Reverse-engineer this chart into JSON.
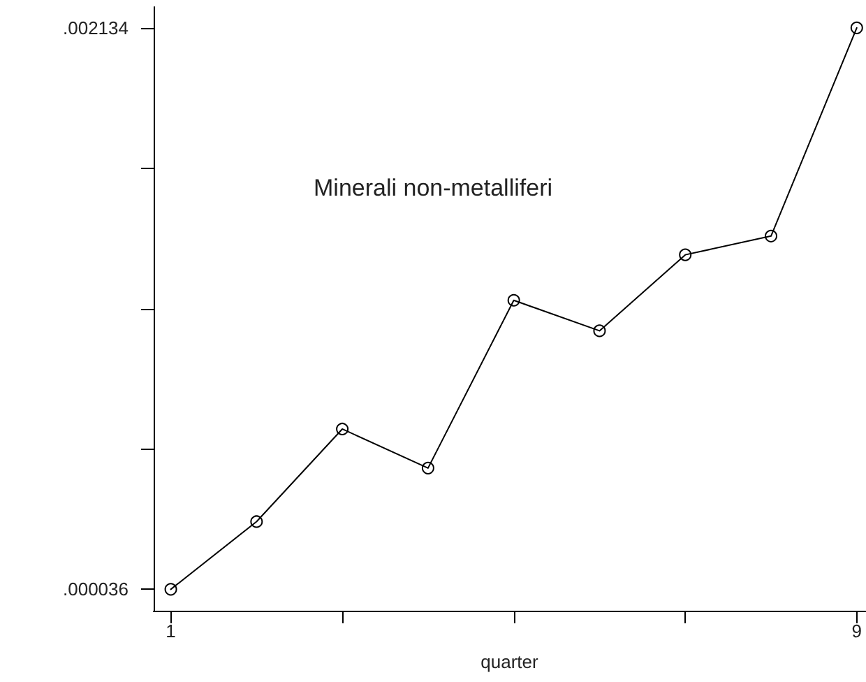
{
  "chart_data": {
    "type": "line",
    "title": "Minerali non-metalliferi",
    "xlabel": "quarter",
    "x": [
      1,
      2,
      3,
      4,
      5,
      6,
      7,
      8,
      9
    ],
    "values": [
      3.6e-05,
      0.000289,
      0.000635,
      0.000489,
      0.001116,
      0.001002,
      0.001286,
      0.001356,
      0.002134
    ],
    "color": "#000000",
    "xlim": [
      0.8,
      9.1
    ],
    "xticks": [
      1,
      {
        "value": 3,
        "label": null
      },
      {
        "value": 5,
        "label": null
      },
      {
        "value": 7,
        "label": null
      },
      9
    ],
    "ylim": [
      -4.4e-05,
      0.002212
    ],
    "yticks": [
      {
        "value": 3.6e-05,
        "label": ".000036"
      },
      {
        "value": 0.0005605,
        "label": null
      },
      {
        "value": 0.001085,
        "label": null
      },
      {
        "value": 0.0016095,
        "label": null
      },
      {
        "value": 0.002134,
        "label": ".002134"
      }
    ],
    "grid": false,
    "marker": "circle",
    "line_style": "solid"
  }
}
